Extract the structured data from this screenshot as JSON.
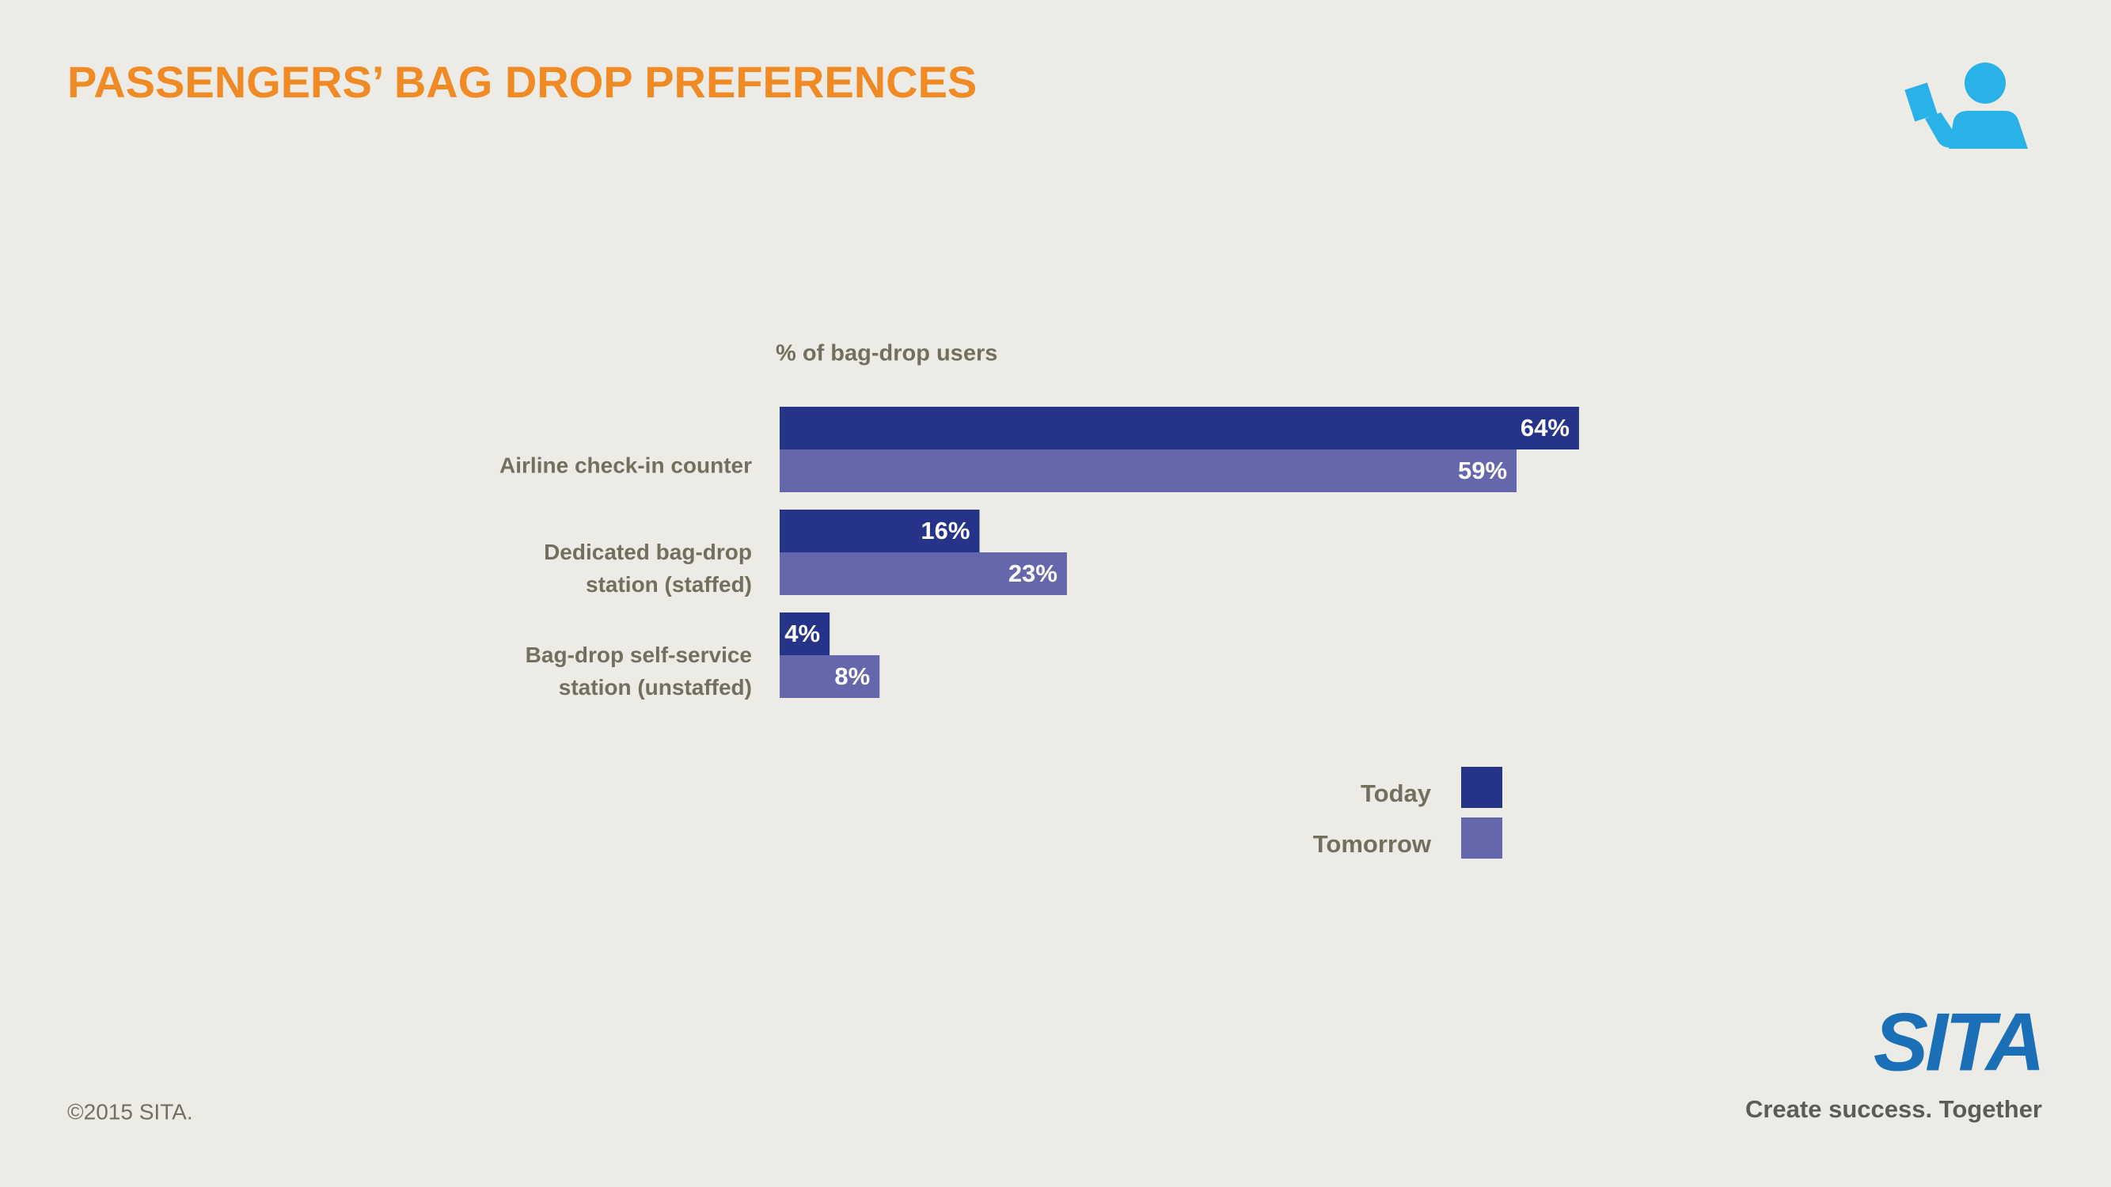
{
  "chart_data": {
    "type": "bar",
    "orientation": "horizontal",
    "title": "PASSENGERS’ BAG DROP PREFERENCES",
    "axis_label": "% of bag-drop users",
    "categories": [
      "Airline check-in counter",
      "Dedicated  bag-drop station (staffed)",
      "Bag-drop self-service station (unstaffed)"
    ],
    "series": [
      {
        "name": "Today",
        "color": "#253489",
        "values": [
          64,
          16,
          4
        ],
        "value_labels": [
          "64%",
          "16%",
          "4%"
        ]
      },
      {
        "name": "Tomorrow",
        "color": "#6567ac",
        "values": [
          59,
          23,
          8
        ],
        "value_labels": [
          "59%",
          "23%",
          "8%"
        ]
      }
    ],
    "xlim": [
      0,
      100
    ],
    "legend": "bottom-right"
  },
  "footer": {
    "copyright": "©2015 SITA.",
    "logo": "SITA",
    "tagline": "Create success. Together"
  }
}
